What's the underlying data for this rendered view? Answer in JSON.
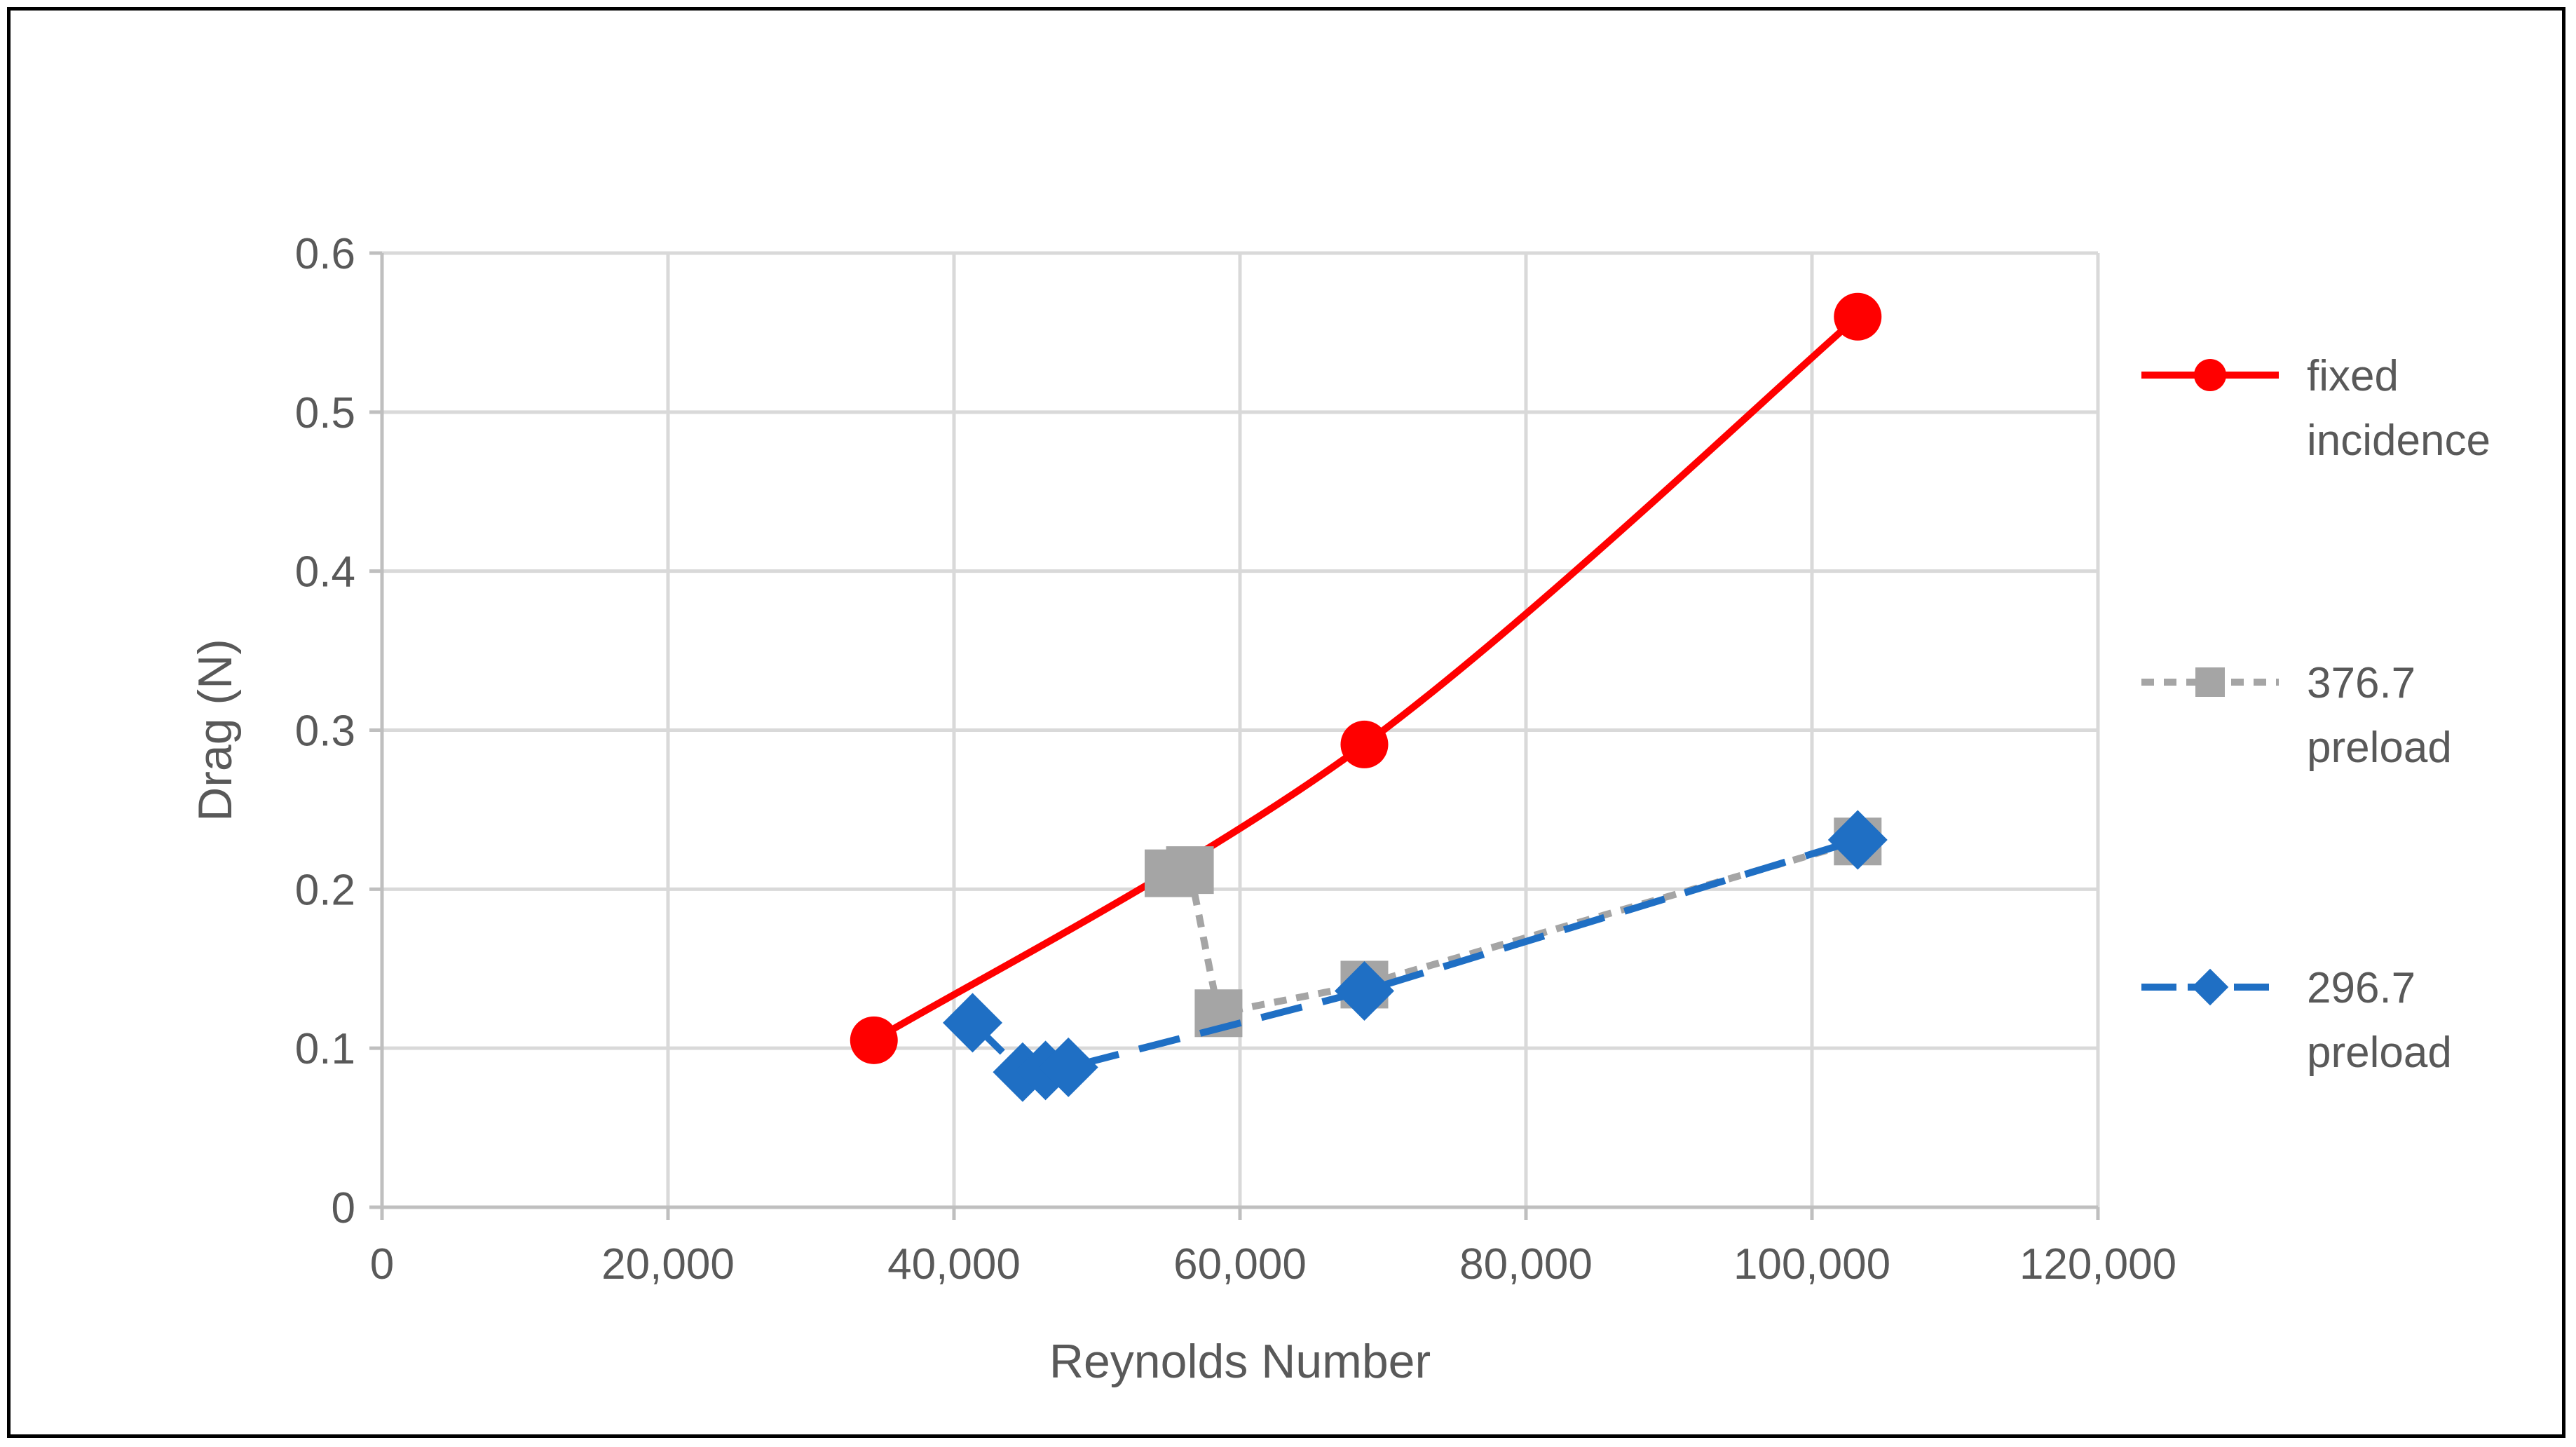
{
  "chart_data": {
    "type": "line",
    "title": "",
    "xlabel": "Reynolds Number",
    "ylabel": "Drag (N)",
    "xlim": [
      0,
      120000
    ],
    "ylim": [
      0,
      0.6
    ],
    "x_ticks": [
      0,
      20000,
      40000,
      60000,
      80000,
      100000,
      120000
    ],
    "x_tick_labels": [
      "0",
      "20,000",
      "40,000",
      "60,000",
      "80,000",
      "100,000",
      "120,000"
    ],
    "y_ticks": [
      0,
      0.1,
      0.2,
      0.3,
      0.4,
      0.5,
      0.6
    ],
    "y_tick_labels": [
      "0",
      "0.1",
      "0.2",
      "0.3",
      "0.4",
      "0.5",
      "0.6"
    ],
    "grid": true,
    "legend_position": "right",
    "series": [
      {
        "name": "fixed incidence",
        "legend_lines": [
          "fixed",
          "incidence"
        ],
        "color": "#ff0000",
        "marker": "circle",
        "line_style": "solid",
        "smooth": true,
        "x": [
          34400,
          68700,
          103200
        ],
        "y": [
          0.105,
          0.291,
          0.56
        ]
      },
      {
        "name": "376.7 preload",
        "legend_lines": [
          "376.7",
          "preload"
        ],
        "color": "#a5a5a5",
        "marker": "square",
        "line_style": "dashed",
        "smooth": false,
        "x": [
          55000,
          56500,
          58500,
          68700,
          103200
        ],
        "y": [
          0.21,
          0.212,
          0.122,
          0.14,
          0.23
        ]
      },
      {
        "name": "296.7 preload",
        "legend_lines": [
          "296.7",
          "preload"
        ],
        "color": "#1f6fc4",
        "marker": "diamond",
        "line_style": "longdash",
        "smooth": false,
        "x": [
          41300,
          44800,
          46400,
          48000,
          68700,
          103200
        ],
        "y": [
          0.116,
          0.085,
          0.086,
          0.088,
          0.136,
          0.231
        ]
      }
    ]
  }
}
